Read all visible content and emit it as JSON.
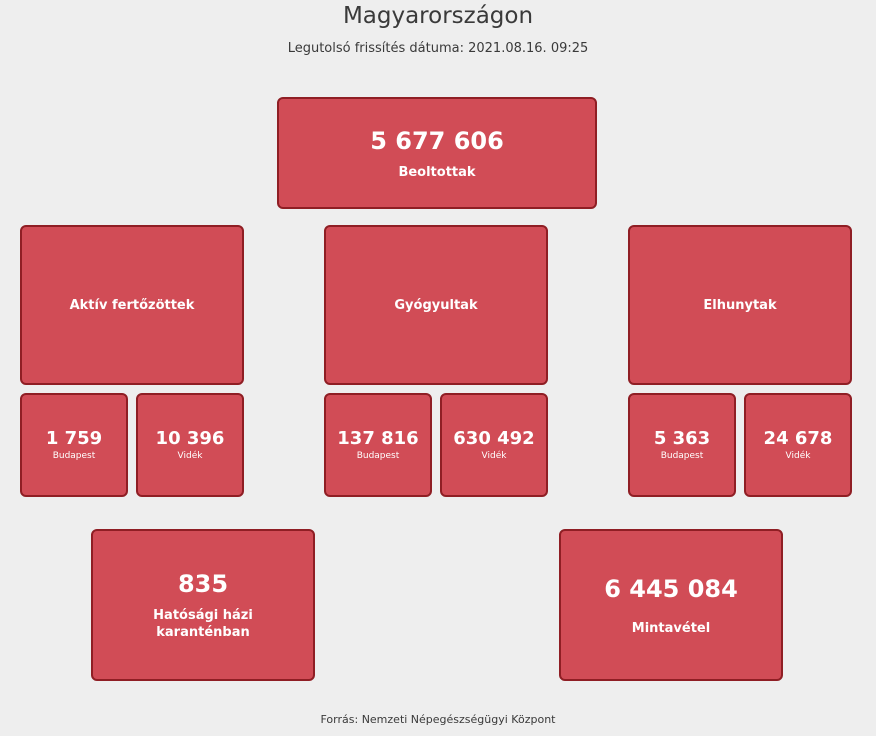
{
  "header": {
    "title": "Magyarországon",
    "updated": "Legutolsó frissítés dátuma: 2021.08.16. 09:25"
  },
  "vaccinated": {
    "value": "5 677 606",
    "label": "Beoltottak"
  },
  "groups": [
    {
      "label": "Aktív fertőzöttek",
      "budapest": {
        "value": "1 759",
        "label": "Budapest"
      },
      "videk": {
        "value": "10 396",
        "label": "Vidék"
      }
    },
    {
      "label": "Gyógyultak",
      "budapest": {
        "value": "137 816",
        "label": "Budapest"
      },
      "videk": {
        "value": "630 492",
        "label": "Vidék"
      }
    },
    {
      "label": "Elhunytak",
      "budapest": {
        "value": "5 363",
        "label": "Budapest"
      },
      "videk": {
        "value": "24 678",
        "label": "Vidék"
      }
    }
  ],
  "quarantine": {
    "value": "835",
    "label": "Hatósági házi karanténban"
  },
  "samples": {
    "value": "6 445 084",
    "label": "Mintavétel"
  },
  "footer": {
    "source": "Forrás: Nemzeti Népegészségügyi Központ"
  },
  "colors": {
    "box_fill": "#d14c56",
    "box_border": "#8f1e24",
    "background": "#eeeeee"
  }
}
